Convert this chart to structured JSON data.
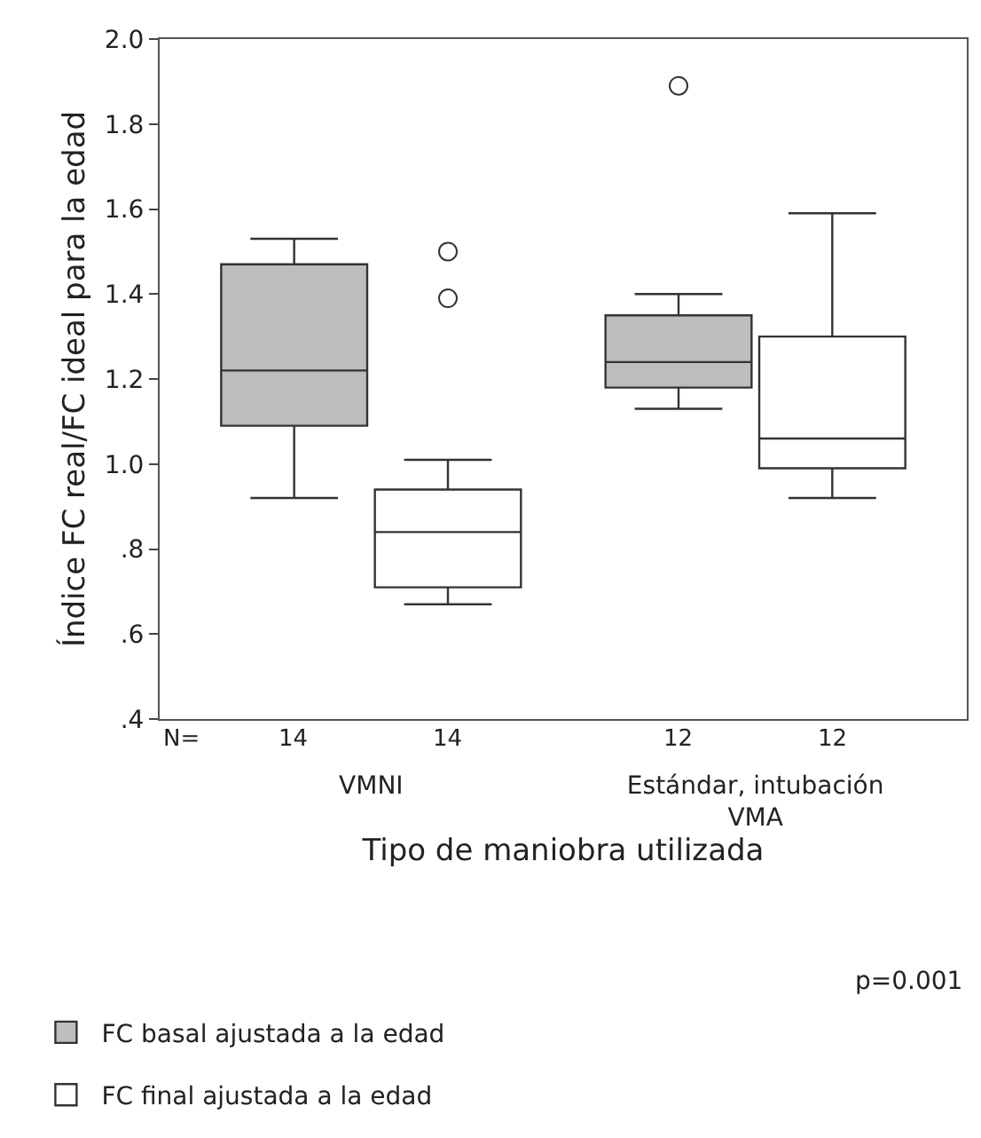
{
  "chart_data": {
    "type": "box",
    "xlabel": "Tipo de maniobra utilizada",
    "ylabel": "Índice FC real/FC ideal para la edad",
    "categories": [
      "VMNI",
      "Estándar, intubación VMA"
    ],
    "series": [
      {
        "name": "FC basal ajustada a la edad",
        "color": "#bdbdbd",
        "boxes": [
          {
            "low": 0.92,
            "q1": 1.09,
            "median": 1.22,
            "q3": 1.47,
            "high": 1.53
          },
          {
            "low": 1.13,
            "q1": 1.18,
            "median": 1.24,
            "q3": 1.35,
            "high": 1.4,
            "outliers": [
              1.89
            ]
          }
        ]
      },
      {
        "name": "FC final ajustada a la edad",
        "color": "#ffffff",
        "boxes": [
          {
            "low": 0.67,
            "q1": 0.71,
            "median": 0.84,
            "q3": 0.94,
            "high": 1.01,
            "outliers": [
              1.5,
              1.39
            ]
          },
          {
            "low": 0.92,
            "q1": 0.99,
            "median": 1.06,
            "q3": 1.3,
            "high": 1.59
          }
        ]
      }
    ],
    "ylim": [
      0.4,
      2.0
    ],
    "yticks": [
      {
        "value": 0.4,
        "label": ".4"
      },
      {
        "value": 0.6,
        "label": ".6"
      },
      {
        "value": 0.8,
        "label": ".8"
      },
      "1.0",
      1.2,
      1.4,
      1.6,
      1.8,
      "2.0"
    ],
    "annotations": [
      "N=",
      "14",
      "14",
      "12",
      "12",
      "p=0.001"
    ],
    "legend": "bottom left",
    "marker": "circle"
  }
}
